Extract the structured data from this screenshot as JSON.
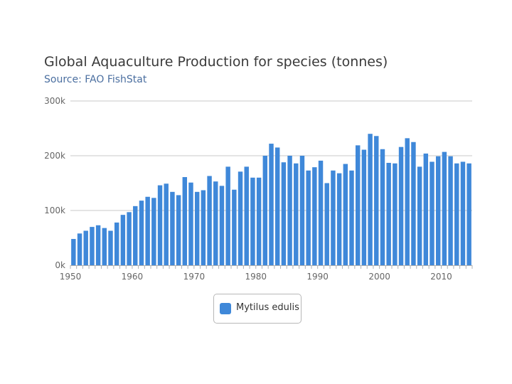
{
  "chart_data": {
    "type": "bar",
    "title": "Global Aquaculture Production for species (tonnes)",
    "subtitle": "Source: FAO FishStat",
    "xlabel": "",
    "ylabel": "",
    "ylim": [
      0,
      300000
    ],
    "y_ticks": [
      {
        "value": 0,
        "label": "0k"
      },
      {
        "value": 100000,
        "label": "100k"
      },
      {
        "value": 200000,
        "label": "200k"
      },
      {
        "value": 300000,
        "label": "300k"
      }
    ],
    "x_ticks": [
      1950,
      1960,
      1970,
      1980,
      1990,
      2000,
      2010
    ],
    "grid": true,
    "legend": "bottom-center",
    "series": [
      {
        "name": "Mytilus edulis",
        "color": "#3f88d9",
        "x": [
          1950,
          1951,
          1952,
          1953,
          1954,
          1955,
          1956,
          1957,
          1958,
          1959,
          1960,
          1961,
          1962,
          1963,
          1964,
          1965,
          1966,
          1967,
          1968,
          1969,
          1970,
          1971,
          1972,
          1973,
          1974,
          1975,
          1976,
          1977,
          1978,
          1979,
          1980,
          1981,
          1982,
          1983,
          1984,
          1985,
          1986,
          1987,
          1988,
          1989,
          1990,
          1991,
          1992,
          1993,
          1994,
          1995,
          1996,
          1997,
          1998,
          1999,
          2000,
          2001,
          2002,
          2003,
          2004,
          2005,
          2006,
          2007,
          2008,
          2009,
          2010,
          2011,
          2012,
          2013,
          2014
        ],
        "values": [
          48000,
          58000,
          63000,
          70000,
          73000,
          68000,
          63000,
          78000,
          92000,
          97000,
          108000,
          118000,
          125000,
          123000,
          146000,
          149000,
          134000,
          128000,
          161000,
          151000,
          134000,
          137000,
          163000,
          153000,
          145000,
          180000,
          138000,
          171000,
          180000,
          160000,
          160000,
          200000,
          222000,
          215000,
          188000,
          200000,
          186000,
          200000,
          173000,
          179000,
          191000,
          150000,
          173000,
          168000,
          185000,
          173000,
          219000,
          211000,
          240000,
          236000,
          212000,
          187000,
          186000,
          216000,
          232000,
          225000,
          180000,
          204000,
          189000,
          199000,
          207000,
          199000,
          186000,
          189000,
          186000
        ]
      }
    ]
  }
}
